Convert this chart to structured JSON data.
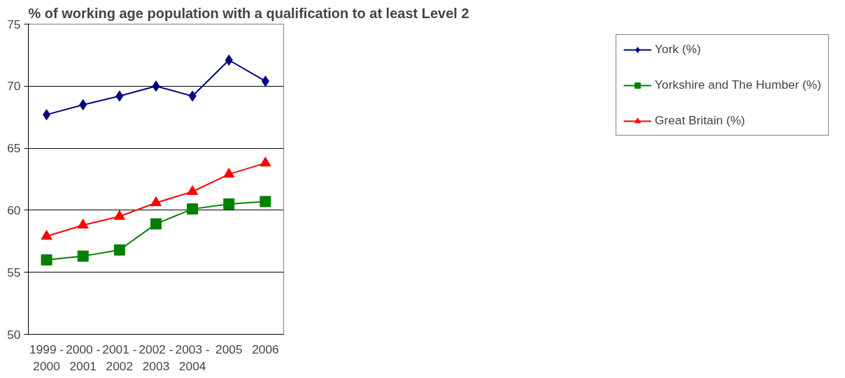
{
  "chart_data": {
    "type": "line",
    "title": "% of working age population with a qualification to at least Level 2",
    "categories": [
      "1999 - 2000",
      "2000 - 2001",
      "2001 - 2002",
      "2002 - 2003",
      "2003 - 2004",
      "2005",
      "2006"
    ],
    "ylim": [
      50,
      75
    ],
    "yticks": [
      50,
      55,
      60,
      65,
      70,
      75
    ],
    "grid": "y",
    "legend": "right",
    "series": [
      {
        "name": "York (%)",
        "color": "#000080",
        "marker": "diamond",
        "values": [
          67.7,
          68.5,
          69.2,
          70.0,
          69.2,
          72.1,
          70.4
        ]
      },
      {
        "name": "Yorkshire and The Humber (%)",
        "color": "#008000",
        "marker": "square",
        "values": [
          56.0,
          56.3,
          56.8,
          58.9,
          60.1,
          60.5,
          60.7
        ]
      },
      {
        "name": "Great Britain (%)",
        "color": "#ff0000",
        "marker": "triangle",
        "values": [
          57.9,
          58.8,
          59.5,
          60.6,
          61.5,
          62.9,
          63.8
        ]
      }
    ]
  }
}
